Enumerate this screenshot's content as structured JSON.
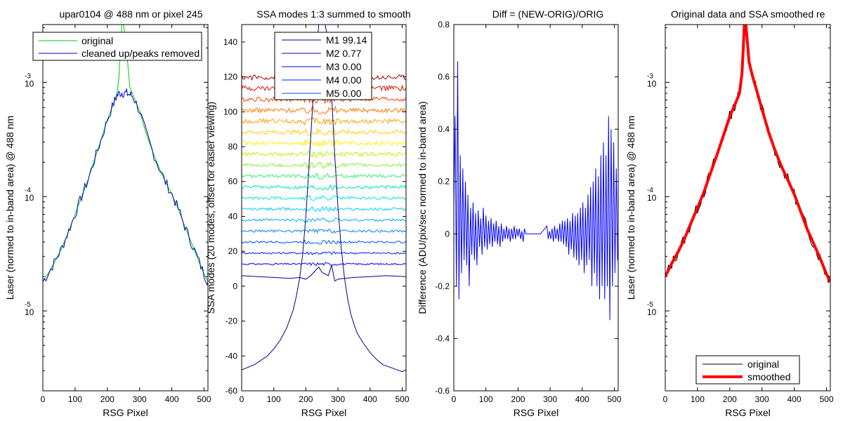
{
  "colors": {
    "original": "#00cc00",
    "cleaned": "#0000cc",
    "diff": "#0000ff",
    "smoothed": "#ff0000",
    "orig_black": "#000000"
  },
  "chart_data": [
    {
      "type": "line",
      "title": "upar0104 @ 488 nm or pixel 245",
      "xlabel": "RSG Pixel",
      "ylabel": "Laser (normed to in-band area) @ 488 nm",
      "xlim": [
        0,
        512
      ],
      "ylim": [
        2e-06,
        0.0032
      ],
      "yscale": "log",
      "xticks": [
        "0",
        "100",
        "200",
        "300",
        "400",
        "500"
      ],
      "yticks": [
        {
          "value": 0.001,
          "mant": "10",
          "exp": "-3"
        },
        {
          "value": 0.0001,
          "mant": "10",
          "exp": "-4"
        },
        {
          "value": 1e-05,
          "mant": "10",
          "exp": "-5"
        }
      ],
      "legend_position": "top-right",
      "series": [
        {
          "name": "original",
          "x": [
            0,
            20,
            40,
            60,
            80,
            100,
            120,
            140,
            160,
            180,
            200,
            220,
            230,
            236,
            240,
            245,
            250,
            256,
            262,
            270,
            280,
            300,
            320,
            340,
            360,
            380,
            400,
            420,
            440,
            460,
            480,
            500,
            512
          ],
          "y": [
            1.8e-05,
            2.2e-05,
            2.8e-05,
            3.6e-05,
            5e-05,
            7e-05,
            0.0001,
            0.00014,
            0.00021,
            0.00031,
            0.00047,
            0.00066,
            0.0008,
            0.0011,
            0.002,
            0.0032,
            0.0032,
            0.0024,
            0.0016,
            0.0009,
            0.00077,
            0.00056,
            0.00036,
            0.00025,
            0.00018,
            0.000135,
            0.000105,
            7.8e-05,
            5.5e-05,
            4e-05,
            2.9e-05,
            2.1e-05,
            1.8e-05
          ]
        },
        {
          "name": "cleaned up/peaks removed",
          "x": [
            0,
            20,
            40,
            60,
            80,
            100,
            120,
            140,
            160,
            180,
            200,
            220,
            230,
            240,
            250,
            260,
            270,
            280,
            300,
            320,
            340,
            360,
            380,
            400,
            420,
            440,
            460,
            480,
            500,
            512
          ],
          "y": [
            1.8e-05,
            2.2e-05,
            2.8e-05,
            3.6e-05,
            5e-05,
            7e-05,
            0.0001,
            0.00014,
            0.00021,
            0.00031,
            0.00047,
            0.00066,
            0.00077,
            0.00081,
            0.00081,
            0.0008,
            0.00078,
            0.00075,
            0.00056,
            0.00036,
            0.00025,
            0.00018,
            0.000135,
            0.000105,
            7.8e-05,
            5.5e-05,
            4e-05,
            2.9e-05,
            2.1e-05,
            1.8e-05
          ]
        }
      ]
    },
    {
      "type": "line",
      "title": "SSA modes 1:3 summed to smooth",
      "xlabel": "RSG Pixel",
      "ylabel": "SSA modes (20 modes, offset for easier viewing)",
      "xlim": [
        0,
        512
      ],
      "ylim": [
        -60,
        150
      ],
      "xticks": [
        "0",
        "100",
        "200",
        "300",
        "400",
        "500"
      ],
      "yticks": [
        -60,
        -40,
        -20,
        0,
        20,
        40,
        60,
        80,
        100,
        120,
        140
      ],
      "legend_position": "top-center",
      "legend": [
        {
          "name": "M1 99.14",
          "color": "#00008f"
        },
        {
          "name": "M2 0.77",
          "color": "#0000bf"
        },
        {
          "name": "M3 0.00",
          "color": "#0000ef"
        },
        {
          "name": "M4 0.00",
          "color": "#0020ff"
        },
        {
          "name": "M5 0.00",
          "color": "#0050ff"
        }
      ],
      "mode1": {
        "x": [
          0,
          40,
          80,
          100,
          120,
          140,
          160,
          170,
          180,
          190,
          200,
          210,
          220,
          230,
          240,
          250,
          255,
          260,
          270,
          280,
          290,
          300,
          310,
          320,
          330,
          340,
          350,
          360,
          380,
          400,
          420,
          440,
          470,
          500,
          512
        ],
        "y": [
          -48,
          -45,
          -40,
          -36,
          -31,
          -24,
          -14,
          -6,
          4,
          18,
          40,
          70,
          100,
          125,
          150,
          150,
          150,
          150,
          140,
          110,
          75,
          45,
          22,
          5,
          -7,
          -16,
          -22,
          -27,
          -33,
          -38,
          -42,
          -45,
          -47,
          -49,
          -48
        ]
      },
      "mode2": {
        "x": [
          0,
          50,
          100,
          150,
          180,
          200,
          215,
          230,
          240,
          250,
          260,
          270,
          280,
          290,
          300,
          320,
          350,
          400,
          450,
          512
        ],
        "y": [
          6,
          5.5,
          5,
          4.5,
          5,
          4,
          6,
          9,
          11,
          8,
          7,
          6,
          12,
          3,
          4,
          4.5,
          5,
          5.5,
          6,
          5.5
        ]
      },
      "offset_modes": [
        {
          "offset": 12.7,
          "color": "#0000ff"
        },
        {
          "offset": 19.0,
          "color": "#0020ff"
        },
        {
          "offset": 25.3,
          "color": "#0050ff"
        },
        {
          "offset": 31.6,
          "color": "#0080ff"
        },
        {
          "offset": 37.9,
          "color": "#00aaff"
        },
        {
          "offset": 44.2,
          "color": "#00ccff"
        },
        {
          "offset": 50.5,
          "color": "#00e6e6"
        },
        {
          "offset": 56.8,
          "color": "#00ee99"
        },
        {
          "offset": 63.1,
          "color": "#33ee66"
        },
        {
          "offset": 69.4,
          "color": "#88ee33"
        },
        {
          "offset": 75.7,
          "color": "#bbee00"
        },
        {
          "offset": 82.0,
          "color": "#ffee00"
        },
        {
          "offset": 88.3,
          "color": "#ffcc00"
        },
        {
          "offset": 94.6,
          "color": "#ffa000"
        },
        {
          "offset": 100.9,
          "color": "#ff7700"
        },
        {
          "offset": 107.2,
          "color": "#ff4400"
        },
        {
          "offset": 113.5,
          "color": "#dd1100"
        },
        {
          "offset": 119.8,
          "color": "#aa0000"
        }
      ]
    },
    {
      "type": "line",
      "title": "Diff = (NEW-ORIG)/ORIG",
      "xlabel": "RSG Pixel",
      "ylabel": "Difference (ADU/pix/sec normed to in-band area)",
      "xlim": [
        0,
        512
      ],
      "ylim": [
        -0.6,
        0.8
      ],
      "xticks": [
        "0",
        "100",
        "200",
        "300",
        "400",
        "500"
      ],
      "yticks": [
        -0.6,
        -0.4,
        -0.2,
        0,
        0.2,
        0.4,
        0.6,
        0.8
      ],
      "ytick_labels": [
        "-0.6",
        "-0.4",
        "-0.2",
        "0",
        "0.2",
        "0.4",
        "0.6",
        "0.8"
      ],
      "series": [
        {
          "name": "",
          "x": [
            0,
            4,
            8,
            12,
            16,
            20,
            24,
            28,
            32,
            36,
            40,
            44,
            48,
            52,
            56,
            60,
            64,
            68,
            72,
            76,
            80,
            84,
            88,
            92,
            96,
            100,
            104,
            108,
            112,
            116,
            120,
            124,
            128,
            132,
            136,
            140,
            144,
            148,
            152,
            156,
            160,
            164,
            168,
            172,
            176,
            180,
            184,
            188,
            192,
            196,
            200,
            204,
            208,
            212,
            216,
            220,
            224,
            230,
            250,
            270,
            290,
            294,
            298,
            302,
            306,
            310,
            314,
            318,
            322,
            326,
            330,
            334,
            338,
            342,
            346,
            350,
            354,
            358,
            362,
            366,
            370,
            374,
            378,
            382,
            386,
            390,
            394,
            398,
            402,
            406,
            410,
            414,
            418,
            422,
            426,
            430,
            434,
            438,
            442,
            446,
            450,
            454,
            458,
            462,
            466,
            470,
            474,
            478,
            482,
            486,
            490,
            494,
            498,
            502,
            506,
            510
          ],
          "y": [
            0.1,
            0.45,
            -0.2,
            0.66,
            -0.25,
            0.3,
            -0.15,
            0.25,
            -0.1,
            0.2,
            -0.12,
            0.15,
            -0.2,
            0.1,
            -0.08,
            0.12,
            -0.1,
            0.08,
            -0.12,
            0.09,
            -0.05,
            0.06,
            -0.08,
            0.1,
            -0.05,
            0.07,
            -0.06,
            0.05,
            -0.04,
            0.06,
            -0.05,
            0.04,
            -0.03,
            0.05,
            -0.04,
            0.03,
            -0.05,
            0.04,
            -0.03,
            0.02,
            -0.02,
            0.03,
            -0.02,
            0.02,
            -0.03,
            0.02,
            -0.02,
            0.03,
            -0.02,
            0.02,
            -0.01,
            0.02,
            -0.02,
            0.01,
            -0.03,
            0.02,
            0.0,
            0.0,
            0.0,
            0.0,
            0.03,
            -0.02,
            0.01,
            -0.02,
            0.02,
            -0.03,
            0.03,
            -0.02,
            0.02,
            -0.03,
            0.04,
            -0.03,
            0.05,
            -0.04,
            0.05,
            -0.05,
            0.06,
            -0.08,
            0.05,
            -0.06,
            0.08,
            -0.09,
            0.07,
            -0.1,
            0.08,
            -0.12,
            0.1,
            -0.1,
            0.12,
            -0.15,
            0.1,
            -0.12,
            0.15,
            -0.1,
            0.18,
            -0.2,
            0.2,
            -0.15,
            0.25,
            -0.2,
            0.22,
            -0.25,
            0.3,
            -0.2,
            0.35,
            -0.25,
            0.3,
            -0.2,
            0.45,
            -0.33,
            0.4,
            -0.2,
            0.35,
            -0.15,
            0.25,
            -0.1
          ]
        }
      ]
    },
    {
      "type": "line",
      "title": "Original data and SSA smoothed re",
      "xlabel": "RSG Pixel",
      "ylabel": "Laser (normed to in-band area) @ 488 nm",
      "xlim": [
        0,
        512
      ],
      "ylim": [
        2e-06,
        0.0032
      ],
      "yscale": "log",
      "xticks": [
        "0",
        "100",
        "200",
        "300",
        "400",
        "500"
      ],
      "yticks": [
        {
          "value": 0.001,
          "mant": "10",
          "exp": "-3"
        },
        {
          "value": 0.0001,
          "mant": "10",
          "exp": "-4"
        },
        {
          "value": 1e-05,
          "mant": "10",
          "exp": "-5"
        }
      ],
      "legend_position": "bottom-right",
      "series": [
        {
          "name": "original",
          "x": [
            0,
            20,
            40,
            60,
            80,
            100,
            120,
            140,
            160,
            180,
            200,
            220,
            230,
            238,
            242,
            245,
            250,
            255,
            260,
            270,
            280,
            300,
            320,
            340,
            360,
            380,
            400,
            420,
            440,
            460,
            480,
            500,
            512
          ],
          "y": [
            2e-05,
            2.6e-05,
            3.3e-05,
            4.3e-05,
            5.9e-05,
            8e-05,
            0.00011,
            0.00016,
            0.00023,
            0.00034,
            0.0005,
            0.00068,
            0.0008,
            0.0012,
            0.002,
            0.0032,
            0.0032,
            0.0022,
            0.0015,
            0.00115,
            0.00092,
            0.00058,
            0.00037,
            0.000255,
            0.000185,
            0.00014,
            0.000105,
            7.4e-05,
            5.2e-05,
            3.9e-05,
            2.9e-05,
            2.1e-05,
            1.8e-05
          ]
        },
        {
          "name": "smoothed",
          "x": [
            0,
            20,
            40,
            60,
            80,
            100,
            120,
            140,
            160,
            180,
            200,
            220,
            230,
            238,
            242,
            245,
            250,
            255,
            260,
            270,
            280,
            300,
            320,
            340,
            360,
            380,
            400,
            420,
            440,
            460,
            480,
            500,
            512
          ],
          "y": [
            2e-05,
            2.6e-05,
            3.3e-05,
            4.3e-05,
            5.9e-05,
            8e-05,
            0.00011,
            0.00016,
            0.00023,
            0.00034,
            0.0005,
            0.00068,
            0.0008,
            0.0012,
            0.002,
            0.0032,
            0.0032,
            0.0022,
            0.0015,
            0.00115,
            0.00092,
            0.00058,
            0.00037,
            0.000255,
            0.000185,
            0.00014,
            0.000105,
            7.4e-05,
            5.2e-05,
            3.9e-05,
            2.9e-05,
            2.1e-05,
            1.8e-05
          ]
        }
      ]
    }
  ]
}
